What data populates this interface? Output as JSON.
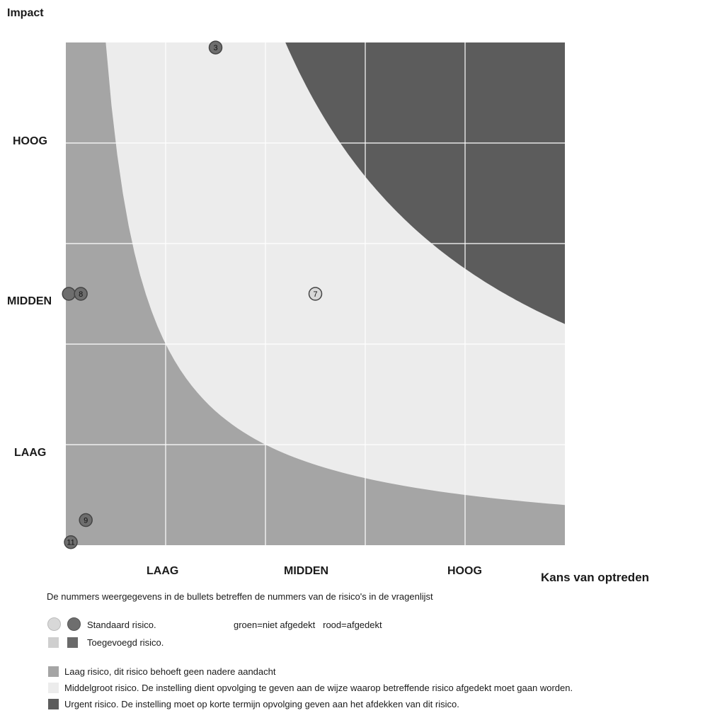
{
  "chart_data": {
    "type": "scatter",
    "ylabel": "Impact",
    "xlabel": "Kans van optreden",
    "x_categories": [
      "LAAG",
      "MIDDEN",
      "HOOG"
    ],
    "y_categories": [
      "HOOG",
      "MIDDEN",
      "LAAG"
    ],
    "xlim": [
      0,
      5
    ],
    "ylim": [
      0,
      5
    ],
    "grid": true,
    "zones": [
      {
        "name": "Laag risico",
        "color": "#a5a5a5"
      },
      {
        "name": "Middelgroot risico",
        "color": "#ececec"
      },
      {
        "name": "Urgent risico",
        "color": "#5c5c5c"
      }
    ],
    "points": [
      {
        "label": "3",
        "x": 1.5,
        "y": 4.95,
        "kind": "standaard-dark"
      },
      {
        "label": "",
        "x": 0.03,
        "y": 2.5,
        "kind": "standaard-dark"
      },
      {
        "label": "8",
        "x": 0.15,
        "y": 2.5,
        "kind": "standaard-dark"
      },
      {
        "label": "7",
        "x": 2.5,
        "y": 2.5,
        "kind": "standaard-light"
      },
      {
        "label": "9",
        "x": 0.2,
        "y": 0.25,
        "kind": "standaard-dark"
      },
      {
        "label": "11",
        "x": 0.05,
        "y": 0.03,
        "kind": "standaard-dark"
      }
    ]
  },
  "notes": {
    "bullets_note": "De nummers weergegevens in de bullets betreffen de nummers van de risico's in de vragenlijst",
    "standaard": "Standaard risico.",
    "toegevoegd": "Toegevoegd risico.",
    "kleur_legenda": "groen=niet afgedekt   rood=afgedekt",
    "laag": "Laag risico, dit risico behoeft geen nadere aandacht",
    "middel": "Middelgroot risico. De instelling dient opvolging te geven aan de wijze waarop betreffende risico afgedekt moet gaan worden.",
    "urgent": "Urgent risico. De instelling moet op korte termijn opvolging geven aan het afdekken van dit risico."
  },
  "colors": {
    "light_point": "#d8d8d8",
    "dark_point": "#6e6e6e",
    "grid": "#ffffff"
  }
}
